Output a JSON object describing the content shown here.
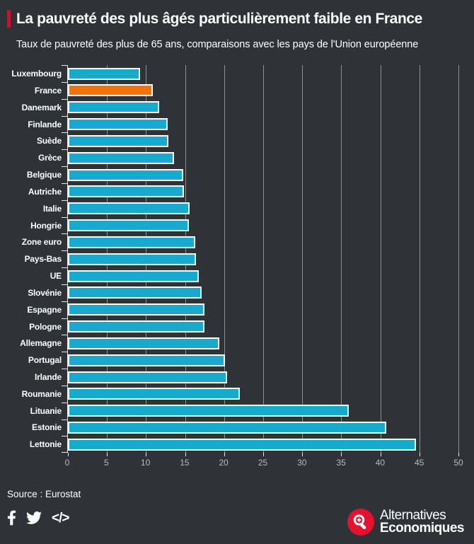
{
  "page": {
    "background": "#2e3338"
  },
  "header": {
    "title": "La pauvreté des plus âgés particulièrement faible en France",
    "subtitle": "Taux de pauvreté des plus de 65 ans, comparaisons avec les pays de l'Union européenne",
    "accent_color": "#c01431"
  },
  "chart_data": {
    "type": "bar",
    "orientation": "horizontal",
    "title": "La pauvreté des plus âgés particulièrement faible en France",
    "subtitle": "Taux de pauvreté des plus de 65 ans, comparaisons avec les pays de l'Union européenne",
    "xlabel": "",
    "ylabel": "",
    "xlim": [
      0,
      50
    ],
    "x_ticks": [
      0,
      5,
      10,
      15,
      20,
      25,
      30,
      35,
      40,
      45,
      50
    ],
    "grid": true,
    "categories": [
      "Luxembourg",
      "France",
      "Danemark",
      "Finlande",
      "Suède",
      "Grèce",
      "Belgique",
      "Autriche",
      "Italie",
      "Hongrie",
      "Zone euro",
      "Pays-Bas",
      "UE",
      "Slovénie",
      "Espagne",
      "Pologne",
      "Allemagne",
      "Portugal",
      "Irlande",
      "Roumanie",
      "Lituanie",
      "Estonie",
      "Lettonie"
    ],
    "values": [
      9.2,
      10.9,
      11.7,
      12.8,
      12.9,
      13.6,
      14.8,
      14.9,
      15.6,
      15.5,
      16.3,
      16.4,
      16.8,
      17.1,
      17.5,
      17.5,
      19.4,
      20.1,
      20.4,
      22.0,
      36.0,
      40.8,
      44.6
    ],
    "highlight_category": "France",
    "bar_color": "#18a9cf",
    "highlight_color": "#f2730b",
    "bar_border_color": "#ffffff",
    "legend": "none"
  },
  "footer": {
    "source": "Source : Eurostat",
    "icons": [
      "facebook-icon",
      "twitter-icon",
      "embed-code-icon"
    ],
    "embed_icon_glyph": "</>",
    "logo": {
      "line1": "Alternatives",
      "line2": "Economiques",
      "color": "#e8112d"
    }
  }
}
